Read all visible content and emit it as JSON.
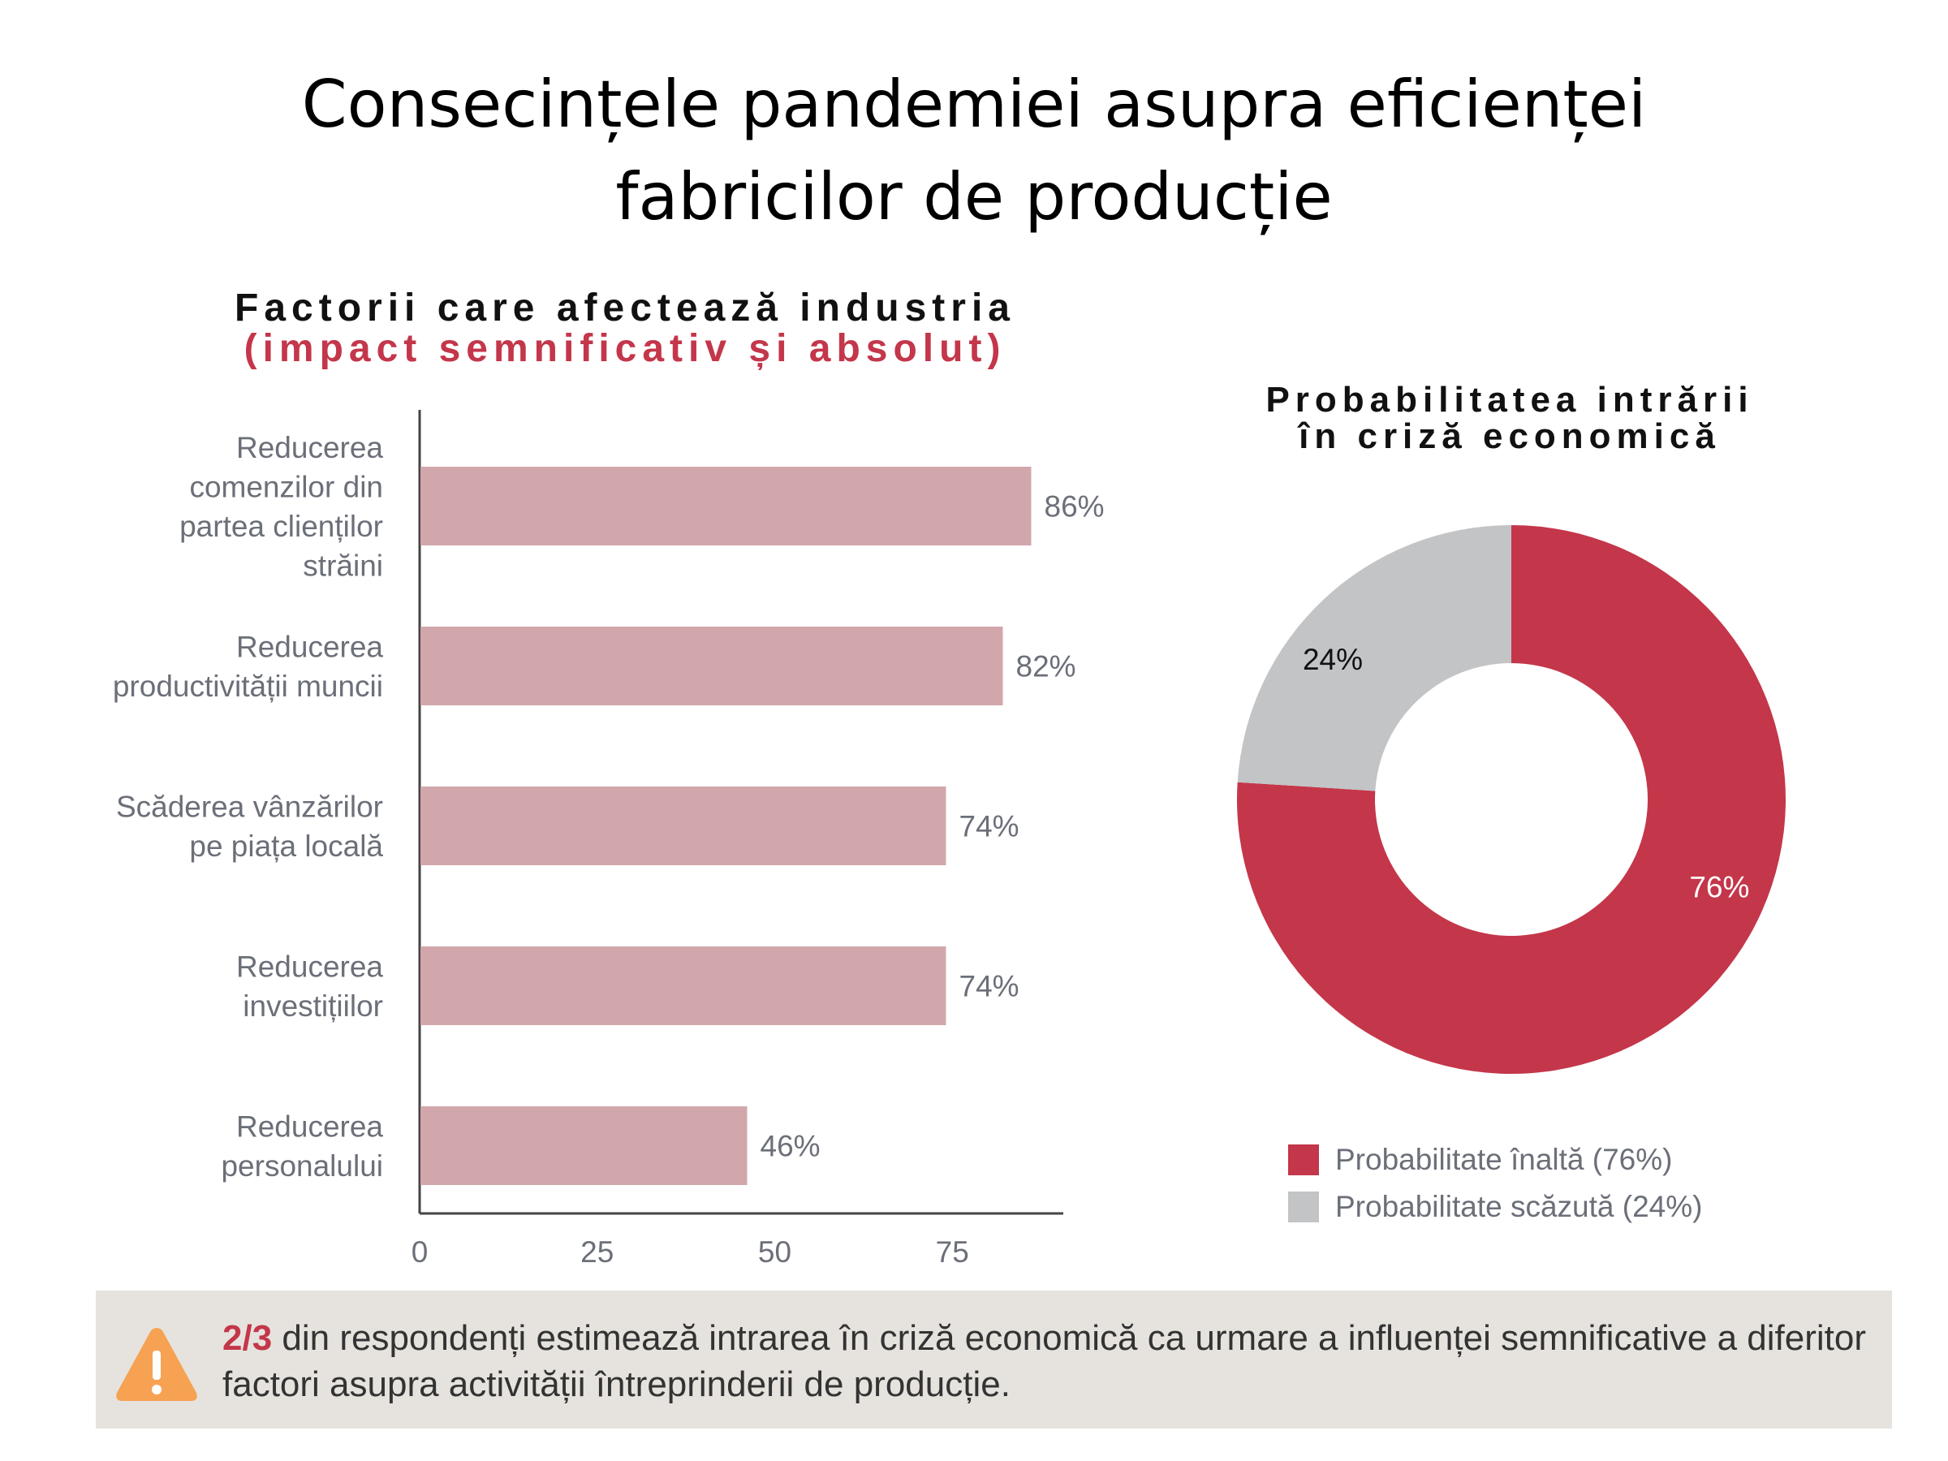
{
  "title": {
    "line1": "Consecințele pandemiei asupra eficienței",
    "line2": "fabricilor de producție"
  },
  "chart_data": [
    {
      "type": "bar",
      "orientation": "horizontal",
      "title": "Factorii care afectează industria",
      "subtitle": "(impact semnificativ și absolut)",
      "categories": [
        [
          "Reducerea",
          "comenzilor din",
          "partea clienților",
          "străini"
        ],
        [
          "Reducerea",
          "productivității muncii"
        ],
        [
          "Scăderea vânzărilor",
          "pe piața locală"
        ],
        [
          "Reducerea",
          "investițiilor"
        ],
        [
          "Reducerea",
          "personalului"
        ]
      ],
      "values": [
        86,
        82,
        74,
        74,
        46
      ],
      "value_labels": [
        "86%",
        "82%",
        "74%",
        "74%",
        "46%"
      ],
      "xticks": [
        0,
        25,
        50,
        75
      ],
      "xtick_labels": [
        "0",
        "25",
        "50",
        "75"
      ],
      "xlim": [
        0,
        90
      ],
      "grid": false,
      "colors": {
        "bar": "#d2a7ac",
        "axis": "#444444",
        "label": "#6b6f78"
      }
    },
    {
      "type": "pie",
      "variant": "donut",
      "title_lines": [
        "Probabilitatea intrării",
        "în criză economică"
      ],
      "slices": [
        {
          "label": "Probabilitate înaltă (76%)",
          "value": 76,
          "value_label": "76%",
          "color": "#c4364a",
          "label_color": "#ffffff"
        },
        {
          "label": "Probabilitate scăzută (24%)",
          "value": 24,
          "value_label": "24%",
          "color": "#c2c4c6",
          "label_color": "#111111"
        }
      ],
      "legend_position": "bottom"
    }
  ],
  "note": {
    "icon": "warning-icon",
    "highlight": "2/3",
    "text": " din respondenți estimează intrarea în criză economică ca urmare a influenței semnificative a diferitor factori asupra activității întreprinderii de producție.",
    "colors": {
      "background": "#e6e3de",
      "highlight": "#c4364a",
      "icon": "#f6a252"
    }
  }
}
